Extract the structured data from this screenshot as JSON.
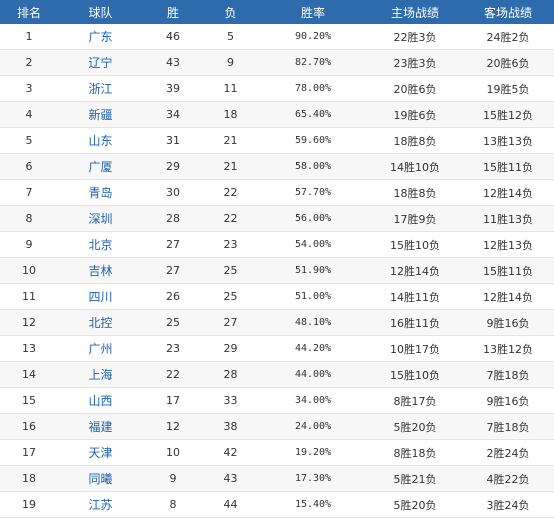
{
  "headers": {
    "rank": "排名",
    "team": "球队",
    "wins": "胜",
    "losses": "负",
    "pct": "胜率",
    "home": "主场战绩",
    "away": "客场战绩"
  },
  "rows": [
    {
      "rank": "1",
      "team": "广东",
      "wins": "46",
      "losses": "5",
      "pct": "90.20%",
      "home": "22胜3负",
      "away": "24胜2负"
    },
    {
      "rank": "2",
      "team": "辽宁",
      "wins": "43",
      "losses": "9",
      "pct": "82.70%",
      "home": "23胜3负",
      "away": "20胜6负"
    },
    {
      "rank": "3",
      "team": "浙江",
      "wins": "39",
      "losses": "11",
      "pct": "78.00%",
      "home": "20胜6负",
      "away": "19胜5负"
    },
    {
      "rank": "4",
      "team": "新疆",
      "wins": "34",
      "losses": "18",
      "pct": "65.40%",
      "home": "19胜6负",
      "away": "15胜12负"
    },
    {
      "rank": "5",
      "team": "山东",
      "wins": "31",
      "losses": "21",
      "pct": "59.60%",
      "home": "18胜8负",
      "away": "13胜13负"
    },
    {
      "rank": "6",
      "team": "广厦",
      "wins": "29",
      "losses": "21",
      "pct": "58.00%",
      "home": "14胜10负",
      "away": "15胜11负"
    },
    {
      "rank": "7",
      "team": "青岛",
      "wins": "30",
      "losses": "22",
      "pct": "57.70%",
      "home": "18胜8负",
      "away": "12胜14负"
    },
    {
      "rank": "8",
      "team": "深圳",
      "wins": "28",
      "losses": "22",
      "pct": "56.00%",
      "home": "17胜9负",
      "away": "11胜13负"
    },
    {
      "rank": "9",
      "team": "北京",
      "wins": "27",
      "losses": "23",
      "pct": "54.00%",
      "home": "15胜10负",
      "away": "12胜13负"
    },
    {
      "rank": "10",
      "team": "吉林",
      "wins": "27",
      "losses": "25",
      "pct": "51.90%",
      "home": "12胜14负",
      "away": "15胜11负"
    },
    {
      "rank": "11",
      "team": "四川",
      "wins": "26",
      "losses": "25",
      "pct": "51.00%",
      "home": "14胜11负",
      "away": "12胜14负"
    },
    {
      "rank": "12",
      "team": "北控",
      "wins": "25",
      "losses": "27",
      "pct": "48.10%",
      "home": "16胜11负",
      "away": "9胜16负"
    },
    {
      "rank": "13",
      "team": "广州",
      "wins": "23",
      "losses": "29",
      "pct": "44.20%",
      "home": "10胜17负",
      "away": "13胜12负"
    },
    {
      "rank": "14",
      "team": "上海",
      "wins": "22",
      "losses": "28",
      "pct": "44.00%",
      "home": "15胜10负",
      "away": "7胜18负"
    },
    {
      "rank": "15",
      "team": "山西",
      "wins": "17",
      "losses": "33",
      "pct": "34.00%",
      "home": "8胜17负",
      "away": "9胜16负"
    },
    {
      "rank": "16",
      "team": "福建",
      "wins": "12",
      "losses": "38",
      "pct": "24.00%",
      "home": "5胜20负",
      "away": "7胜18负"
    },
    {
      "rank": "17",
      "team": "天津",
      "wins": "10",
      "losses": "42",
      "pct": "19.20%",
      "home": "8胜18负",
      "away": "2胜24负"
    },
    {
      "rank": "18",
      "team": "同曦",
      "wins": "9",
      "losses": "43",
      "pct": "17.30%",
      "home": "5胜21负",
      "away": "4胜22负"
    },
    {
      "rank": "19",
      "team": "江苏",
      "wins": "8",
      "losses": "44",
      "pct": "15.40%",
      "home": "5胜20负",
      "away": "3胜24负"
    }
  ],
  "colors": {
    "header_bg": "#2e6bad",
    "header_text": "#ffffff",
    "team_link": "#1f62b0",
    "row_divider": "#e3e3e3",
    "alt_row_bg": "#f7f7f7"
  }
}
